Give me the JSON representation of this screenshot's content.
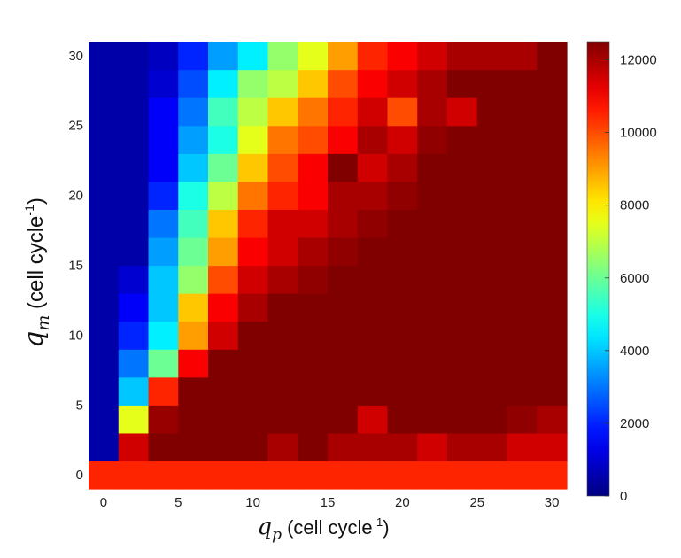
{
  "chart_data": {
    "type": "heatmap",
    "title": "",
    "x_values": [
      0,
      2,
      4,
      6,
      8,
      10,
      12,
      14,
      16,
      18,
      20,
      22,
      24,
      26,
      28,
      30
    ],
    "y_values": [
      0,
      2,
      4,
      6,
      8,
      10,
      12,
      14,
      16,
      18,
      20,
      22,
      24,
      26,
      28,
      30
    ],
    "x_ticks": [
      0,
      5,
      10,
      15,
      20,
      25,
      30
    ],
    "y_ticks": [
      0,
      5,
      10,
      15,
      20,
      25,
      30
    ],
    "xlim": [
      -1,
      31
    ],
    "ylim": [
      -1,
      31
    ],
    "xlabel": {
      "symbol": "q",
      "subscript": "p",
      "units": " (cell cycle",
      "superscript": "-1",
      "close": ")"
    },
    "ylabel": {
      "symbol": "q",
      "subscript": "m",
      "units": " (cell cycle",
      "superscript": "-1",
      "close": ")"
    },
    "z_range": [
      0,
      12500
    ],
    "colorbar_ticks": [
      0,
      2000,
      4000,
      6000,
      8000,
      10000,
      12000
    ],
    "colormap": "jet",
    "z": [
      [
        10500,
        10500,
        10500,
        10500,
        10500,
        10500,
        10500,
        10500,
        10500,
        10500,
        10500,
        10500,
        10500,
        10500,
        10500,
        10500
      ],
      [
        500,
        11500,
        12500,
        12500,
        12500,
        12500,
        12000,
        12500,
        12000,
        12000,
        12000,
        11500,
        12000,
        12000,
        11500,
        11500
      ],
      [
        500,
        7500,
        12200,
        12500,
        12500,
        12500,
        12500,
        12500,
        12500,
        11500,
        12500,
        12500,
        12500,
        12500,
        12300,
        12000
      ],
      [
        500,
        4000,
        10500,
        12500,
        12500,
        12500,
        12500,
        12500,
        12500,
        12500,
        12500,
        12500,
        12500,
        12500,
        12500,
        12500
      ],
      [
        500,
        3000,
        6000,
        11000,
        12500,
        12500,
        12500,
        12500,
        12500,
        12500,
        12500,
        12500,
        12500,
        12500,
        12500,
        12500
      ],
      [
        500,
        2000,
        4500,
        9000,
        11500,
        12500,
        12500,
        12500,
        12500,
        12500,
        12500,
        12500,
        12500,
        12500,
        12500,
        12500
      ],
      [
        500,
        1500,
        4000,
        8500,
        11000,
        12000,
        12500,
        12500,
        12500,
        12500,
        12500,
        12500,
        12500,
        12500,
        12500,
        12500
      ],
      [
        500,
        1000,
        4000,
        6500,
        10000,
        11500,
        12000,
        12300,
        12500,
        12500,
        12500,
        12500,
        12500,
        12500,
        12500,
        12500
      ],
      [
        500,
        500,
        3500,
        6000,
        9000,
        11000,
        11500,
        12000,
        12300,
        12500,
        12500,
        12500,
        12500,
        12500,
        12500,
        12500
      ],
      [
        500,
        500,
        3000,
        5500,
        8500,
        10500,
        11500,
        11500,
        12000,
        12300,
        12500,
        12500,
        12500,
        12500,
        12500,
        12500
      ],
      [
        500,
        500,
        2000,
        5000,
        7000,
        9500,
        10500,
        11000,
        12000,
        12000,
        12300,
        12500,
        12500,
        12500,
        12500,
        12500
      ],
      [
        500,
        500,
        1500,
        4000,
        6000,
        8500,
        10000,
        11000,
        12500,
        11500,
        12000,
        12500,
        12500,
        12500,
        12500,
        12500
      ],
      [
        500,
        500,
        1500,
        3500,
        5000,
        7500,
        9500,
        10000,
        11000,
        12000,
        11500,
        12300,
        12500,
        12500,
        12500,
        12500
      ],
      [
        500,
        500,
        1500,
        3000,
        5500,
        7000,
        8500,
        9500,
        10500,
        11500,
        10000,
        12000,
        11500,
        12500,
        12500,
        12500
      ],
      [
        500,
        500,
        1000,
        2500,
        4500,
        6500,
        7000,
        8500,
        10000,
        11000,
        11500,
        12000,
        12500,
        12500,
        12500,
        12500
      ],
      [
        500,
        500,
        800,
        2000,
        3500,
        4500,
        6500,
        7500,
        9000,
        10500,
        11000,
        11500,
        12000,
        12000,
        12000,
        12500
      ]
    ]
  }
}
